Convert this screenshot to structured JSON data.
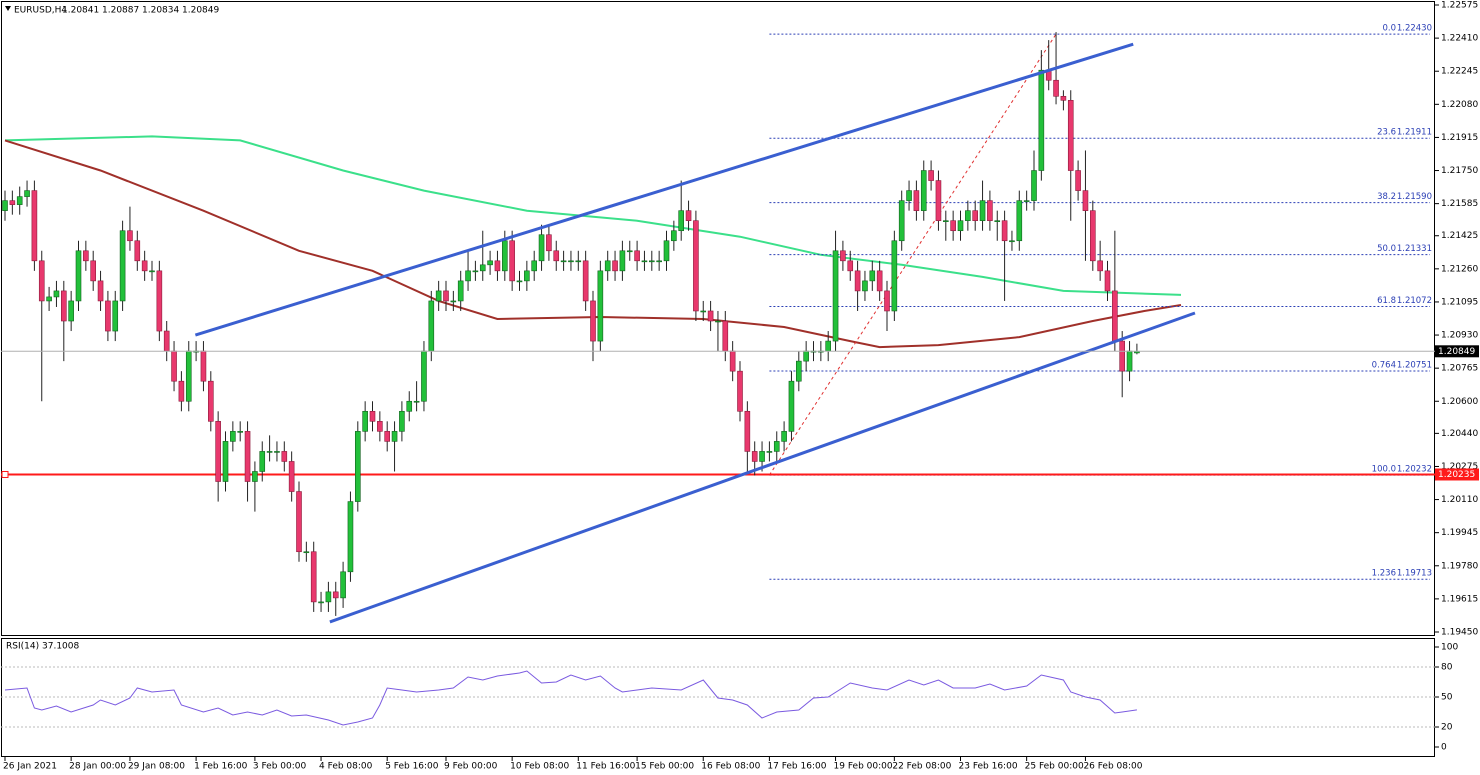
{
  "chart_data": [
    {
      "type": "candlestick",
      "title": "EURUSD,H4",
      "up_color": "#22c03a",
      "down_color": "#e8386d",
      "wick_color": "#222222",
      "open": [
        1.2155,
        1.216,
        1.2158,
        1.2162,
        1.2165,
        1.213,
        1.211,
        1.2112,
        1.2115,
        1.21,
        1.211,
        1.2135,
        1.213,
        1.212,
        1.211,
        1.2095,
        1.211,
        1.2145,
        1.214,
        1.213,
        1.2125,
        1.2125,
        1.2095,
        1.2085,
        1.207,
        1.206,
        1.2085,
        1.2085,
        1.207,
        1.205,
        1.202,
        1.204,
        1.2045,
        1.2045,
        1.202,
        1.2025,
        1.2035,
        1.2035,
        1.2035,
        1.203,
        1.2015,
        1.1985,
        1.1985,
        1.196,
        1.196,
        1.1965,
        1.1962,
        1.1975,
        1.201,
        1.2045,
        1.2055,
        1.205,
        1.2045,
        1.204,
        1.2045,
        1.2055,
        1.206,
        1.206,
        1.2085,
        1.211,
        1.2115,
        1.211,
        1.211,
        1.212,
        1.2125,
        1.2125,
        1.2128,
        1.213,
        1.2125,
        1.214,
        1.212,
        1.212,
        1.2125,
        1.213,
        1.2143,
        1.2135,
        1.213,
        1.213,
        1.213,
        1.213,
        1.211,
        1.209,
        1.2125,
        1.213,
        1.2125,
        1.2135,
        1.2135,
        1.213,
        1.213,
        1.213,
        1.213,
        1.214,
        1.2145,
        1.2155,
        1.215,
        1.2105,
        1.2105,
        1.21,
        1.21,
        1.2085,
        1.2075,
        1.2055,
        1.2035,
        1.203,
        1.2035,
        1.2035,
        1.204,
        1.2045,
        1.207,
        1.208,
        1.2085,
        1.2085,
        1.2085,
        1.209,
        1.2135,
        1.213,
        1.2125,
        1.2115,
        1.212,
        1.2125,
        1.2115,
        1.2105,
        1.214,
        1.216,
        1.2165,
        1.2155,
        1.2175,
        1.217,
        1.215,
        1.215,
        1.2145,
        1.215,
        1.2155,
        1.215,
        1.216,
        1.215,
        1.215,
        1.214,
        1.214,
        1.216,
        1.216,
        1.2175,
        1.2225,
        1.222,
        1.2212,
        1.221,
        1.2175,
        1.2165,
        1.2155,
        1.213,
        1.2125,
        1.2115,
        1.209,
        1.2075,
        1.20841
      ],
      "high": [
        1.2165,
        1.2165,
        1.2167,
        1.217,
        1.217,
        1.2135,
        1.2117,
        1.212,
        1.212,
        1.2115,
        1.214,
        1.214,
        1.2135,
        1.2125,
        1.2115,
        1.2115,
        1.215,
        1.2157,
        1.2145,
        1.2135,
        1.213,
        1.213,
        1.21,
        1.209,
        1.2075,
        1.209,
        1.209,
        1.209,
        1.2075,
        1.2055,
        1.2045,
        1.205,
        1.205,
        1.205,
        1.203,
        1.204,
        1.2043,
        1.204,
        1.204,
        1.2035,
        1.202,
        1.199,
        1.199,
        1.1965,
        1.197,
        1.197,
        1.198,
        1.2015,
        1.205,
        1.206,
        1.206,
        1.2055,
        1.205,
        1.205,
        1.206,
        1.2065,
        1.207,
        1.209,
        1.2115,
        1.212,
        1.212,
        1.2115,
        1.2125,
        1.2135,
        1.213,
        1.2145,
        1.2135,
        1.2135,
        1.2145,
        1.2145,
        1.2125,
        1.213,
        1.2135,
        1.2148,
        1.2148,
        1.214,
        1.2135,
        1.2135,
        1.2135,
        1.2135,
        1.2115,
        1.213,
        1.2135,
        1.2135,
        1.214,
        1.214,
        1.214,
        1.2135,
        1.2135,
        1.2135,
        1.2145,
        1.215,
        1.217,
        1.216,
        1.2155,
        1.211,
        1.211,
        1.2105,
        1.2105,
        1.209,
        1.208,
        1.206,
        1.204,
        1.204,
        1.204,
        1.2045,
        1.205,
        1.2075,
        1.2085,
        1.209,
        1.209,
        1.209,
        1.2095,
        1.2145,
        1.214,
        1.2135,
        1.213,
        1.2125,
        1.213,
        1.213,
        1.212,
        1.2145,
        1.2165,
        1.217,
        1.217,
        1.218,
        1.218,
        1.2175,
        1.2155,
        1.2155,
        1.2155,
        1.216,
        1.216,
        1.217,
        1.2165,
        1.2155,
        1.2155,
        1.2145,
        1.2165,
        1.2165,
        1.2185,
        1.2235,
        1.224,
        1.2244,
        1.2215,
        1.2215,
        1.218,
        1.2185,
        1.216,
        1.214,
        1.213,
        1.2145,
        1.2095,
        1.209,
        1.20887
      ],
      "low": [
        1.215,
        1.2153,
        1.2153,
        1.2157,
        1.2125,
        1.206,
        1.2105,
        1.2107,
        1.208,
        1.2095,
        1.2105,
        1.2125,
        1.2115,
        1.2105,
        1.209,
        1.209,
        1.2105,
        1.2135,
        1.2125,
        1.212,
        1.212,
        1.209,
        1.208,
        1.2065,
        1.2055,
        1.2055,
        1.208,
        1.2065,
        1.2045,
        1.201,
        1.2015,
        1.2035,
        1.204,
        1.201,
        1.2005,
        1.202,
        1.203,
        1.203,
        1.2025,
        1.201,
        1.198,
        1.198,
        1.1955,
        1.1955,
        1.1955,
        1.1953,
        1.1957,
        1.197,
        1.2005,
        1.204,
        1.2045,
        1.204,
        1.2035,
        1.2025,
        1.204,
        1.205,
        1.2055,
        1.2055,
        1.208,
        1.2105,
        1.2105,
        1.2105,
        1.2105,
        1.2115,
        1.212,
        1.212,
        1.2123,
        1.212,
        1.212,
        1.2115,
        1.2115,
        1.2115,
        1.212,
        1.2125,
        1.213,
        1.2125,
        1.2125,
        1.2125,
        1.2125,
        1.2105,
        1.208,
        1.2085,
        1.212,
        1.212,
        1.212,
        1.213,
        1.2125,
        1.2125,
        1.2125,
        1.2125,
        1.2125,
        1.2135,
        1.214,
        1.2145,
        1.21,
        1.21,
        1.2095,
        1.2085,
        1.208,
        1.207,
        1.205,
        1.2025,
        1.2023,
        1.2025,
        1.203,
        1.203,
        1.2035,
        1.204,
        1.2065,
        1.2075,
        1.208,
        1.208,
        1.208,
        1.2085,
        1.2125,
        1.212,
        1.2105,
        1.211,
        1.2115,
        1.211,
        1.2095,
        1.21,
        1.2135,
        1.2155,
        1.215,
        1.215,
        1.2165,
        1.2145,
        1.214,
        1.214,
        1.214,
        1.2145,
        1.2145,
        1.2145,
        1.2145,
        1.214,
        1.211,
        1.2135,
        1.2135,
        1.2155,
        1.2155,
        1.217,
        1.2215,
        1.2208,
        1.2205,
        1.215,
        1.216,
        1.213,
        1.2125,
        1.212,
        1.211,
        1.2085,
        1.2062,
        1.207,
        1.20834
      ],
      "close": [
        1.216,
        1.2158,
        1.2162,
        1.2165,
        1.213,
        1.211,
        1.2112,
        1.2115,
        1.21,
        1.211,
        1.2135,
        1.213,
        1.212,
        1.211,
        1.2095,
        1.211,
        1.2145,
        1.214,
        1.213,
        1.2125,
        1.2125,
        1.2095,
        1.2085,
        1.207,
        1.206,
        1.2085,
        1.2085,
        1.207,
        1.205,
        1.202,
        1.204,
        1.2045,
        1.2045,
        1.202,
        1.2025,
        1.2035,
        1.2035,
        1.2035,
        1.203,
        1.2015,
        1.1985,
        1.1985,
        1.196,
        1.196,
        1.1965,
        1.1962,
        1.1975,
        1.201,
        1.2045,
        1.2055,
        1.205,
        1.2045,
        1.204,
        1.2045,
        1.2055,
        1.206,
        1.206,
        1.2085,
        1.211,
        1.2115,
        1.211,
        1.211,
        1.212,
        1.2125,
        1.2125,
        1.2128,
        1.213,
        1.2125,
        1.214,
        1.212,
        1.212,
        1.2125,
        1.213,
        1.2143,
        1.2135,
        1.213,
        1.213,
        1.213,
        1.213,
        1.211,
        1.209,
        1.2125,
        1.213,
        1.2125,
        1.2135,
        1.2135,
        1.213,
        1.213,
        1.213,
        1.213,
        1.214,
        1.2145,
        1.2155,
        1.215,
        1.2105,
        1.2105,
        1.21,
        1.21,
        1.2085,
        1.2075,
        1.2055,
        1.2035,
        1.203,
        1.2035,
        1.2035,
        1.204,
        1.2045,
        1.207,
        1.208,
        1.2085,
        1.2085,
        1.2085,
        1.209,
        1.2135,
        1.213,
        1.2125,
        1.2115,
        1.212,
        1.2125,
        1.2115,
        1.2105,
        1.214,
        1.216,
        1.2165,
        1.2155,
        1.2175,
        1.217,
        1.215,
        1.215,
        1.2145,
        1.215,
        1.2155,
        1.215,
        1.216,
        1.215,
        1.215,
        1.214,
        1.214,
        1.216,
        1.216,
        1.2175,
        1.2225,
        1.222,
        1.2212,
        1.221,
        1.2175,
        1.2165,
        1.2155,
        1.213,
        1.2125,
        1.2115,
        1.209,
        1.2075,
        1.2085,
        1.20849
      ],
      "ylim": [
        1.1943,
        1.2259
      ],
      "yticks": [
        1.22575,
        {
          "value": 1.2241,
          "label": "1.22410"
        },
        1.22245,
        {
          "value": 1.2208,
          "label": "1.22080"
        },
        1.21915,
        {
          "value": 1.2175,
          "label": "1.21750"
        },
        1.21585,
        1.21425,
        {
          "value": 1.2126,
          "label": "1.21260"
        },
        1.21095,
        {
          "value": 1.2093,
          "label": "1.20930"
        },
        1.20765,
        {
          "value": 1.206,
          "label": "1.20600"
        },
        {
          "value": 1.2044,
          "label": "1.20440"
        },
        1.20275,
        {
          "value": 1.2011,
          "label": "1.20110"
        },
        1.19945,
        {
          "value": 1.1978,
          "label": "1.19780"
        },
        1.19615,
        {
          "value": 1.1945,
          "label": "1.19450"
        }
      ],
      "moving_averages": [
        {
          "color": "#3be08a",
          "x": [
            0,
            20,
            32,
            46,
            57,
            71,
            86,
            100,
            111,
            122,
            133,
            144,
            160
          ],
          "values": [
            1.219,
            1.2192,
            1.219,
            1.2175,
            1.2165,
            1.2155,
            1.215,
            1.2142,
            1.2133,
            1.2128,
            1.2122,
            1.2115,
            1.2113
          ]
        },
        {
          "color": "#a0302a",
          "x": [
            0,
            13,
            27,
            40,
            50,
            59,
            67,
            81,
            95,
            106,
            115,
            119,
            127,
            138,
            148,
            155,
            160
          ],
          "values": [
            1.219,
            1.2175,
            1.2155,
            1.2135,
            1.2125,
            1.211,
            1.2101,
            1.2102,
            1.2101,
            1.2097,
            1.209,
            1.2087,
            1.2088,
            1.2092,
            1.21,
            1.2105,
            1.2108
          ]
        }
      ],
      "trendlines": [
        {
          "color": "#3a5fd0",
          "x": [
            25.9,
            153.5
          ],
          "values": [
            1.2093,
            1.2238
          ]
        },
        {
          "color": "#3a5fd0",
          "x": [
            44.2,
            161.9
          ],
          "values": [
            1.195,
            1.2104
          ]
        }
      ],
      "fib": {
        "color": "#2b3fb5",
        "line_color": "#e03030",
        "x": [
          104,
          143
        ],
        "levels": [
          "0.0",
          "23.6",
          "38.2",
          "50.0",
          "61.8",
          "0.764",
          "100.0",
          "1.236"
        ],
        "prices": [
          {
            "value": 1.2243,
            "label": "1.22430"
          },
          1.21911,
          {
            "value": 1.2159,
            "label": "1.21590"
          },
          1.21331,
          1.21072,
          1.20751,
          1.20232,
          1.19713
        ]
      },
      "hline": {
        "color": "#ff1a1a",
        "value": 1.20235
      }
    },
    {
      "type": "line",
      "title": "RSI(14)",
      "color": "#7a5ae0",
      "x": [
        0,
        3,
        4,
        5,
        7,
        9,
        12,
        13,
        15,
        17,
        18,
        20,
        23,
        24,
        27,
        29,
        31,
        33,
        35,
        37,
        39,
        41,
        44,
        46,
        48,
        50,
        51,
        52,
        54,
        56,
        59,
        61,
        63,
        65,
        67,
        70,
        71,
        73,
        75,
        77,
        79,
        81,
        83,
        84,
        86,
        88,
        92,
        95,
        97,
        99,
        101,
        103,
        105,
        108,
        110,
        112,
        115,
        118,
        120,
        123,
        125,
        127,
        129,
        132,
        134,
        136,
        139,
        141,
        144,
        145,
        147,
        149,
        151,
        152,
        154
      ],
      "values": [
        57,
        59,
        39,
        37,
        41,
        35,
        42,
        47,
        42,
        49,
        59,
        55,
        57,
        42,
        35,
        39,
        32,
        35,
        32,
        37,
        31,
        32,
        27,
        22,
        25,
        29,
        42,
        59,
        57,
        55,
        57,
        59,
        70,
        67,
        71,
        74,
        76,
        64,
        65,
        72,
        67,
        71,
        59,
        55,
        57,
        59,
        57,
        67,
        49,
        47,
        42,
        29,
        35,
        37,
        49,
        50,
        64,
        59,
        57,
        67,
        62,
        67,
        59,
        59,
        63,
        57,
        61,
        72,
        67,
        55,
        50,
        47,
        34,
        35,
        37.1008
      ],
      "ylim": [
        -10,
        109
      ],
      "yticks": [
        100,
        80,
        50,
        20,
        0
      ],
      "levels": [
        80,
        50,
        20
      ],
      "xticks": [
        {
          "value": 0,
          "label": "26 Jan 2021"
        },
        {
          "value": 9,
          "label": "28 Jan 00:00"
        },
        {
          "value": 17,
          "label": "29 Jan 08:00"
        },
        {
          "value": 26,
          "label": "1 Feb 16:00"
        },
        {
          "value": 34,
          "label": "3 Feb 00:00"
        },
        {
          "value": 43,
          "label": "4 Feb 08:00"
        },
        {
          "value": 52,
          "label": "5 Feb 16:00"
        },
        {
          "value": 60,
          "label": "9 Feb 00:00"
        },
        {
          "value": 69,
          "label": "10 Feb 08:00"
        },
        {
          "value": 78,
          "label": "11 Feb 16:00"
        },
        {
          "value": 86,
          "label": "15 Feb 00:00"
        },
        {
          "value": 95,
          "label": "16 Feb 08:00"
        },
        {
          "value": 104,
          "label": "17 Feb 16:00"
        },
        {
          "value": 113,
          "label": "19 Feb 00:00"
        },
        {
          "value": 121,
          "label": "22 Feb 08:00"
        },
        {
          "value": 130,
          "label": "23 Feb 16:00"
        },
        {
          "value": 139,
          "label": "25 Feb 00:00"
        },
        {
          "value": 147,
          "label": "26 Feb 08:00"
        }
      ]
    }
  ]
}
